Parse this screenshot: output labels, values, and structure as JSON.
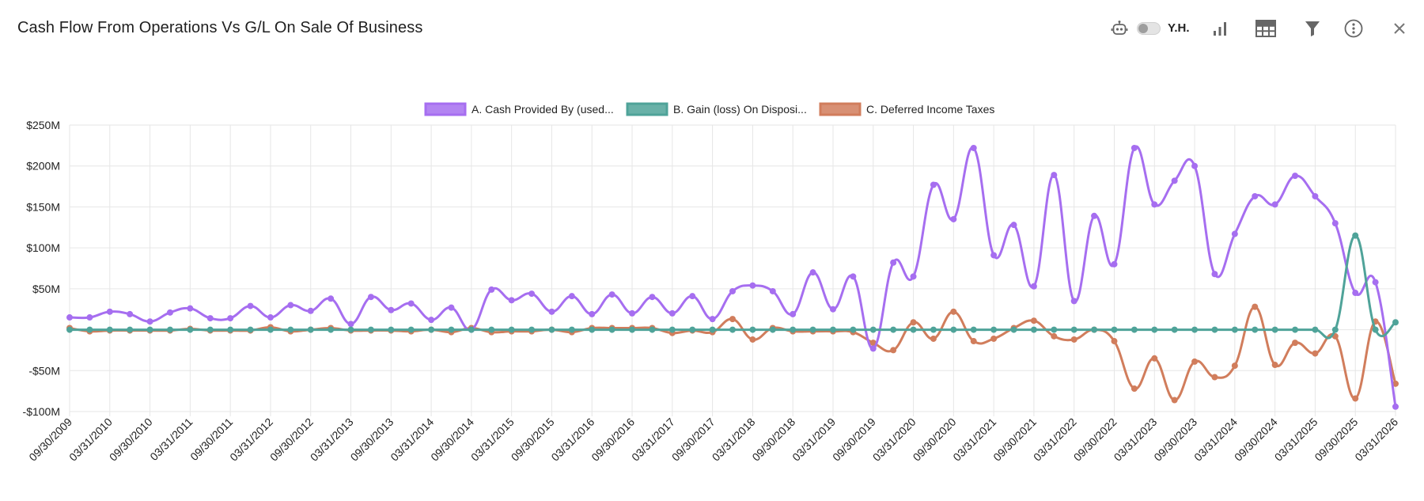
{
  "header": {
    "title": "Cash Flow From Operations Vs G/L On Sale Of Business",
    "toggle_label": "Y.H."
  },
  "toolbar": {
    "icons": [
      "robot-icon",
      "toggle-switch",
      "bar-chart-icon",
      "grid-icon",
      "filter-icon",
      "more-options-icon",
      "close-icon"
    ]
  },
  "colors": {
    "series_a": "#a66ef0",
    "series_b": "#4fa399",
    "series_c": "#d17d5c",
    "grid": "#e6e6e6",
    "icon": "#666666"
  },
  "chart_data": {
    "type": "line",
    "legend_position": "top-center",
    "grid": true,
    "ylim": [
      -100,
      250
    ],
    "yticks": [
      250,
      200,
      150,
      100,
      50,
      0,
      -50,
      -100
    ],
    "ytick_labels": [
      "$250M",
      "$200M",
      "$150M",
      "$100M",
      "$50M",
      "",
      "-$50M",
      "-$100M"
    ],
    "x": [
      "09/30/2009",
      "12/31/2009",
      "03/31/2010",
      "06/30/2010",
      "09/30/2010",
      "12/31/2010",
      "03/31/2011",
      "06/30/2011",
      "09/30/2011",
      "12/31/2011",
      "03/31/2012",
      "06/30/2012",
      "09/30/2012",
      "12/31/2012",
      "03/31/2013",
      "06/30/2013",
      "09/30/2013",
      "12/31/2013",
      "03/31/2014",
      "06/30/2014",
      "09/30/2014",
      "12/31/2014",
      "03/31/2015",
      "06/30/2015",
      "09/30/2015",
      "12/31/2015",
      "03/31/2016",
      "06/30/2016",
      "09/30/2016",
      "12/31/2016",
      "03/31/2017",
      "06/30/2017",
      "09/30/2017",
      "12/31/2017",
      "03/31/2018",
      "06/30/2018",
      "09/30/2018",
      "12/31/2018",
      "03/31/2019",
      "06/30/2019",
      "09/30/2019",
      "12/31/2019",
      "03/31/2020",
      "06/30/2020",
      "09/30/2020",
      "12/31/2020",
      "03/31/2021",
      "06/30/2021",
      "09/30/2021",
      "12/31/2021",
      "03/31/2022",
      "06/30/2022",
      "09/30/2022",
      "12/31/2022",
      "03/31/2023",
      "06/30/2023",
      "09/30/2023",
      "12/31/2023",
      "03/31/2024",
      "06/30/2024",
      "09/30/2024",
      "12/31/2024",
      "03/31/2025",
      "06/30/2025",
      "09/30/2025",
      "12/31/2025",
      "03/31/2026"
    ],
    "xtick_labels": [
      "09/30/2009",
      "03/31/2010",
      "09/30/2010",
      "03/31/2011",
      "09/30/2011",
      "03/31/2012",
      "09/30/2012",
      "03/31/2013",
      "09/30/2013",
      "03/31/2014",
      "09/30/2014",
      "03/31/2015",
      "09/30/2015",
      "03/31/2016",
      "09/30/2016",
      "03/31/2017",
      "09/30/2017",
      "03/31/2018",
      "09/30/2018",
      "03/31/2019",
      "09/30/2019",
      "03/31/2020",
      "09/30/2020",
      "03/31/2021",
      "09/30/2021",
      "03/31/2022",
      "09/30/2022",
      "03/31/2023",
      "09/30/2023",
      "03/31/2024",
      "09/30/2024",
      "03/31/2025",
      "09/30/2025",
      "03/31/2026"
    ],
    "series": [
      {
        "name": "A. Cash Provided By (used...",
        "color": "#a66ef0",
        "values": [
          15,
          15,
          22,
          19,
          10,
          21,
          26,
          14,
          14,
          29,
          15,
          30,
          23,
          38,
          7,
          40,
          24,
          32,
          12,
          27,
          0,
          49,
          36,
          44,
          22,
          41,
          19,
          43,
          20,
          40,
          20,
          41,
          13,
          47,
          54,
          47,
          19,
          70,
          25,
          65,
          -23,
          82,
          65,
          177,
          135,
          222,
          91,
          128,
          53,
          189,
          35,
          139,
          80,
          222,
          153,
          182,
          200,
          68,
          117,
          163,
          153,
          188,
          163,
          130,
          45,
          58,
          -94
        ]
      },
      {
        "name": "B. Gain (loss) On Disposi...",
        "color": "#4fa399",
        "values": [
          0,
          0,
          0,
          0,
          0,
          0,
          0,
          0,
          0,
          0,
          0,
          0,
          0,
          0,
          0,
          0,
          0,
          0,
          0,
          0,
          0,
          0,
          0,
          0,
          0,
          0,
          0,
          0,
          0,
          0,
          0,
          0,
          0,
          0,
          0,
          0,
          0,
          0,
          0,
          0,
          0,
          0,
          0,
          0,
          0,
          0,
          0,
          0,
          0,
          0,
          0,
          0,
          0,
          0,
          0,
          0,
          0,
          0,
          0,
          0,
          0,
          0,
          0,
          0,
          115,
          0,
          9
        ]
      },
      {
        "name": "C. Deferred Income Taxes",
        "color": "#d17d5c",
        "values": [
          2,
          -2,
          -1,
          -1,
          -1,
          -1,
          1,
          -1,
          -1,
          -1,
          3,
          -2,
          0,
          2,
          -1,
          -1,
          -1,
          -2,
          0,
          -3,
          2,
          -3,
          -2,
          -2,
          0,
          -3,
          2,
          2,
          2,
          2,
          -4,
          -1,
          -3,
          13,
          -12,
          2,
          -2,
          -2,
          -2,
          -3,
          -16,
          -25,
          9,
          -11,
          22,
          -14,
          -11,
          2,
          11,
          -8,
          -12,
          0,
          -14,
          -72,
          -35,
          -86,
          -39,
          -58,
          -44,
          28,
          -43,
          -16,
          -29,
          -8,
          -84,
          10,
          -66
        ]
      }
    ]
  }
}
